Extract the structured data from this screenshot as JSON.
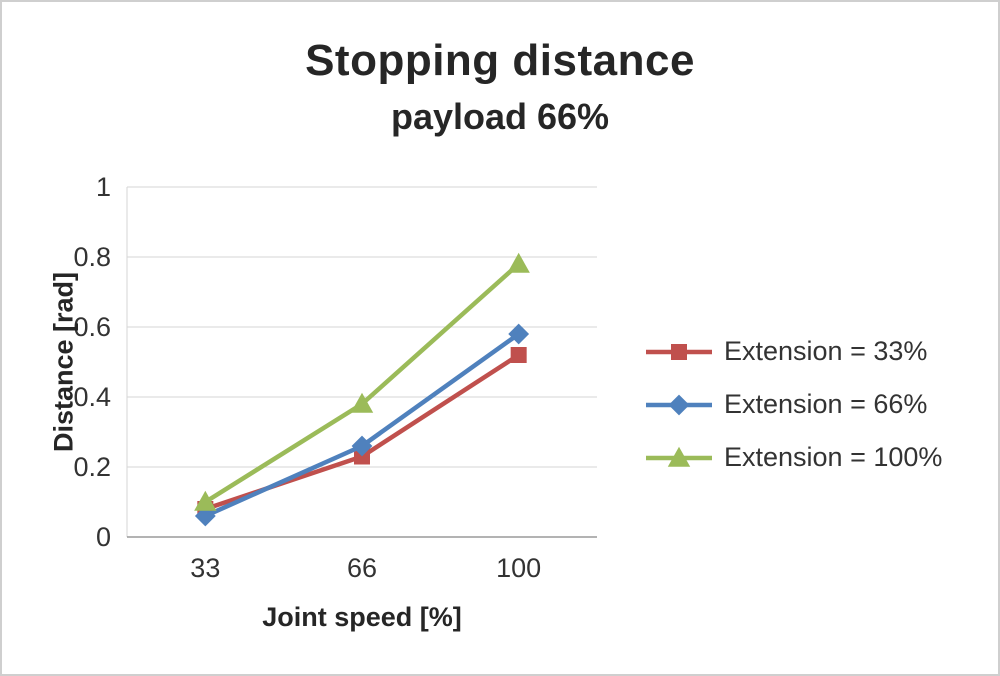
{
  "chart": {
    "title": "Stopping distance",
    "subtitle": "payload 66%"
  },
  "chart_data": {
    "type": "line",
    "title": "Stopping distance",
    "subtitle": "payload 66%",
    "xlabel": "Joint speed [%]",
    "ylabel": "Distance [rad]",
    "categories": [
      "33",
      "66",
      "100"
    ],
    "series": [
      {
        "name": "Extension = 33%",
        "color": "#c0504d",
        "marker": "square",
        "values": [
          0.08,
          0.23,
          0.52
        ]
      },
      {
        "name": "Extension = 66%",
        "color": "#4f81bd",
        "marker": "diamond",
        "values": [
          0.06,
          0.26,
          0.58
        ]
      },
      {
        "name": "Extension = 100%",
        "color": "#9bbb59",
        "marker": "triangle",
        "values": [
          0.1,
          0.38,
          0.78
        ]
      }
    ],
    "ylim": [
      0,
      1
    ],
    "yticks": [
      "0",
      "0.2",
      "0.4",
      "0.6",
      "0.8",
      "1"
    ],
    "grid": true,
    "legend_position": "right"
  },
  "colors": {
    "gridline": "#d6d6d6",
    "axis": "#9a9a9a",
    "tick_text": "#333333"
  }
}
